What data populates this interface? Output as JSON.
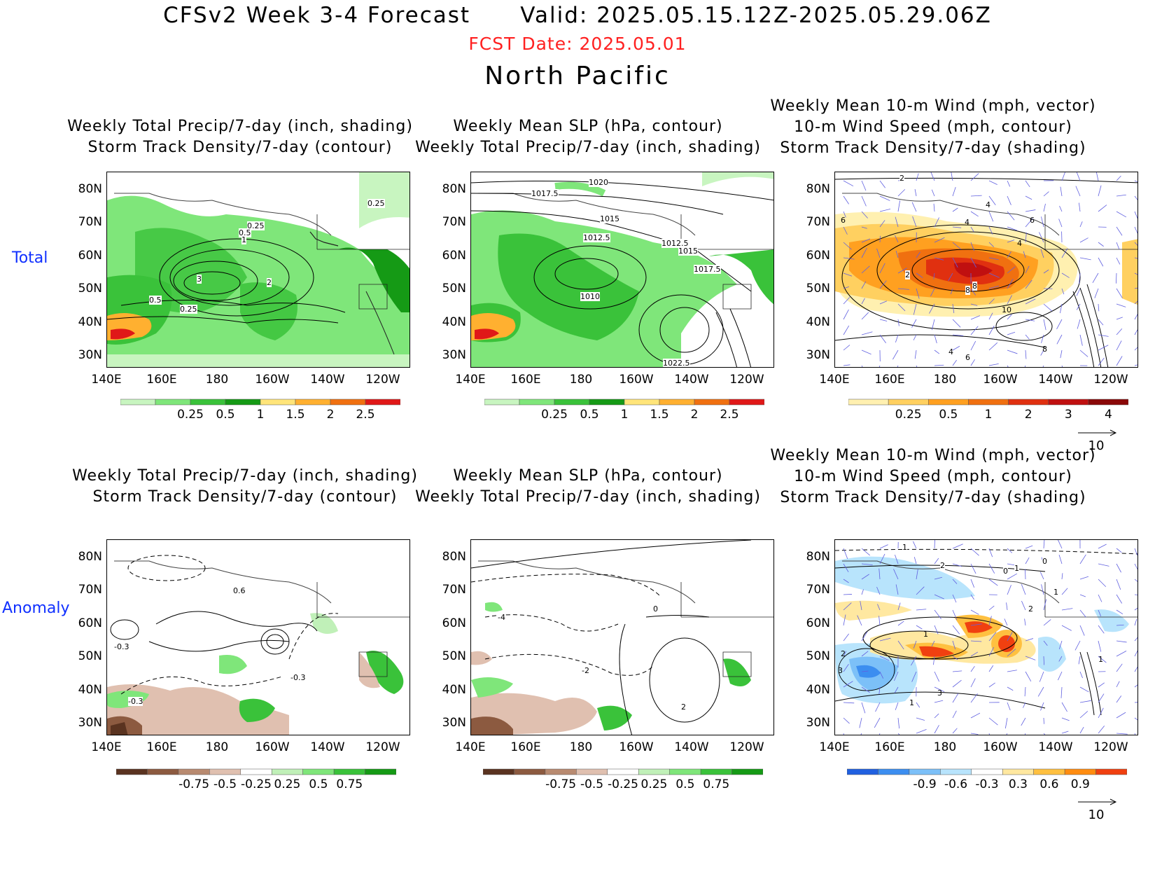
{
  "header": {
    "title": "CFSv2 Week 3-4 Forecast      Valid: 2025.05.15.12Z-2025.05.29.06Z",
    "fcst_date": "FCST Date: 2025.05.01",
    "region": "North Pacific"
  },
  "rows": [
    "Total",
    "Anomaly"
  ],
  "panel_titles": {
    "precip": [
      "Weekly Total Precip/7-day (inch, shading)",
      "Storm Track Density/7-day (contour)"
    ],
    "slp": [
      "Weekly Mean SLP (hPa, contour)",
      "Weekly Total Precip/7-day (inch, shading)"
    ],
    "wind": [
      "Weekly Mean 10-m Wind (mph, vector)",
      "10-m Wind Speed (mph, contour)",
      "Storm Track Density/7-day (shading)"
    ]
  },
  "axes": {
    "lat_labels": [
      "80N",
      "70N",
      "60N",
      "50N",
      "40N",
      "30N"
    ],
    "lon_labels": [
      "140E",
      "160E",
      "180",
      "160W",
      "140W",
      "120W"
    ]
  },
  "colorbars": {
    "precip_total": {
      "labels": [
        "0.25",
        "0.5",
        "1",
        "1.5",
        "2",
        "2.5"
      ],
      "colors": [
        "#c8f5c0",
        "#7fe67a",
        "#3ac23a",
        "#159a15",
        "#ffe57a",
        "#ffb030",
        "#f07010",
        "#e01818"
      ]
    },
    "precip_anom": {
      "labels": [
        "-0.75",
        "-0.5",
        "-0.25",
        "0.25",
        "0.5",
        "0.75"
      ],
      "colors": [
        "#5a3320",
        "#8c5a40",
        "#b88a70",
        "#e0c0b0",
        "#ffffff",
        "#c0f0b8",
        "#7fe67a",
        "#3ac23a",
        "#159a15"
      ]
    },
    "storm_total": {
      "labels": [
        "0.25",
        "0.5",
        "1",
        "2",
        "3",
        "4"
      ],
      "colors": [
        "#fff0b0",
        "#ffd060",
        "#ffa020",
        "#f07010",
        "#e03010",
        "#c01010",
        "#8a0808"
      ]
    },
    "storm_anom": {
      "labels": [
        "-0.9",
        "-0.6",
        "-0.3",
        "0.3",
        "0.6",
        "0.9"
      ],
      "colors": [
        "#2060e0",
        "#3c8ef0",
        "#7cc0f8",
        "#b8e4fc",
        "#ffffff",
        "#ffe8a0",
        "#ffc040",
        "#ff8c10",
        "#f04010"
      ]
    }
  },
  "contour_labels": {
    "precip_total": [
      "3",
      "2",
      "0.5",
      "0.25",
      "0.25",
      "0.5",
      "1",
      "0.25"
    ],
    "slp_total": [
      "1020",
      "1017.5",
      "1015",
      "1012.5",
      "1012.5",
      "1015",
      "1017.5",
      "1010",
      "1022.5"
    ],
    "wind_total": [
      "2",
      "4",
      "6",
      "4",
      "4",
      "6",
      "2",
      "8",
      "8",
      "10",
      "6",
      "4",
      "8"
    ],
    "precip_anom": [
      "0.6",
      "-0.3",
      "-0.3",
      "-0.3"
    ],
    "slp_anom": [
      "0",
      "-4",
      "-2",
      "2"
    ],
    "wind_anom": [
      "1",
      "2",
      "0",
      "1",
      "0",
      "1",
      "2",
      "3",
      "1",
      "1",
      "3",
      "2",
      "1"
    ]
  },
  "vector_reference": "10"
}
